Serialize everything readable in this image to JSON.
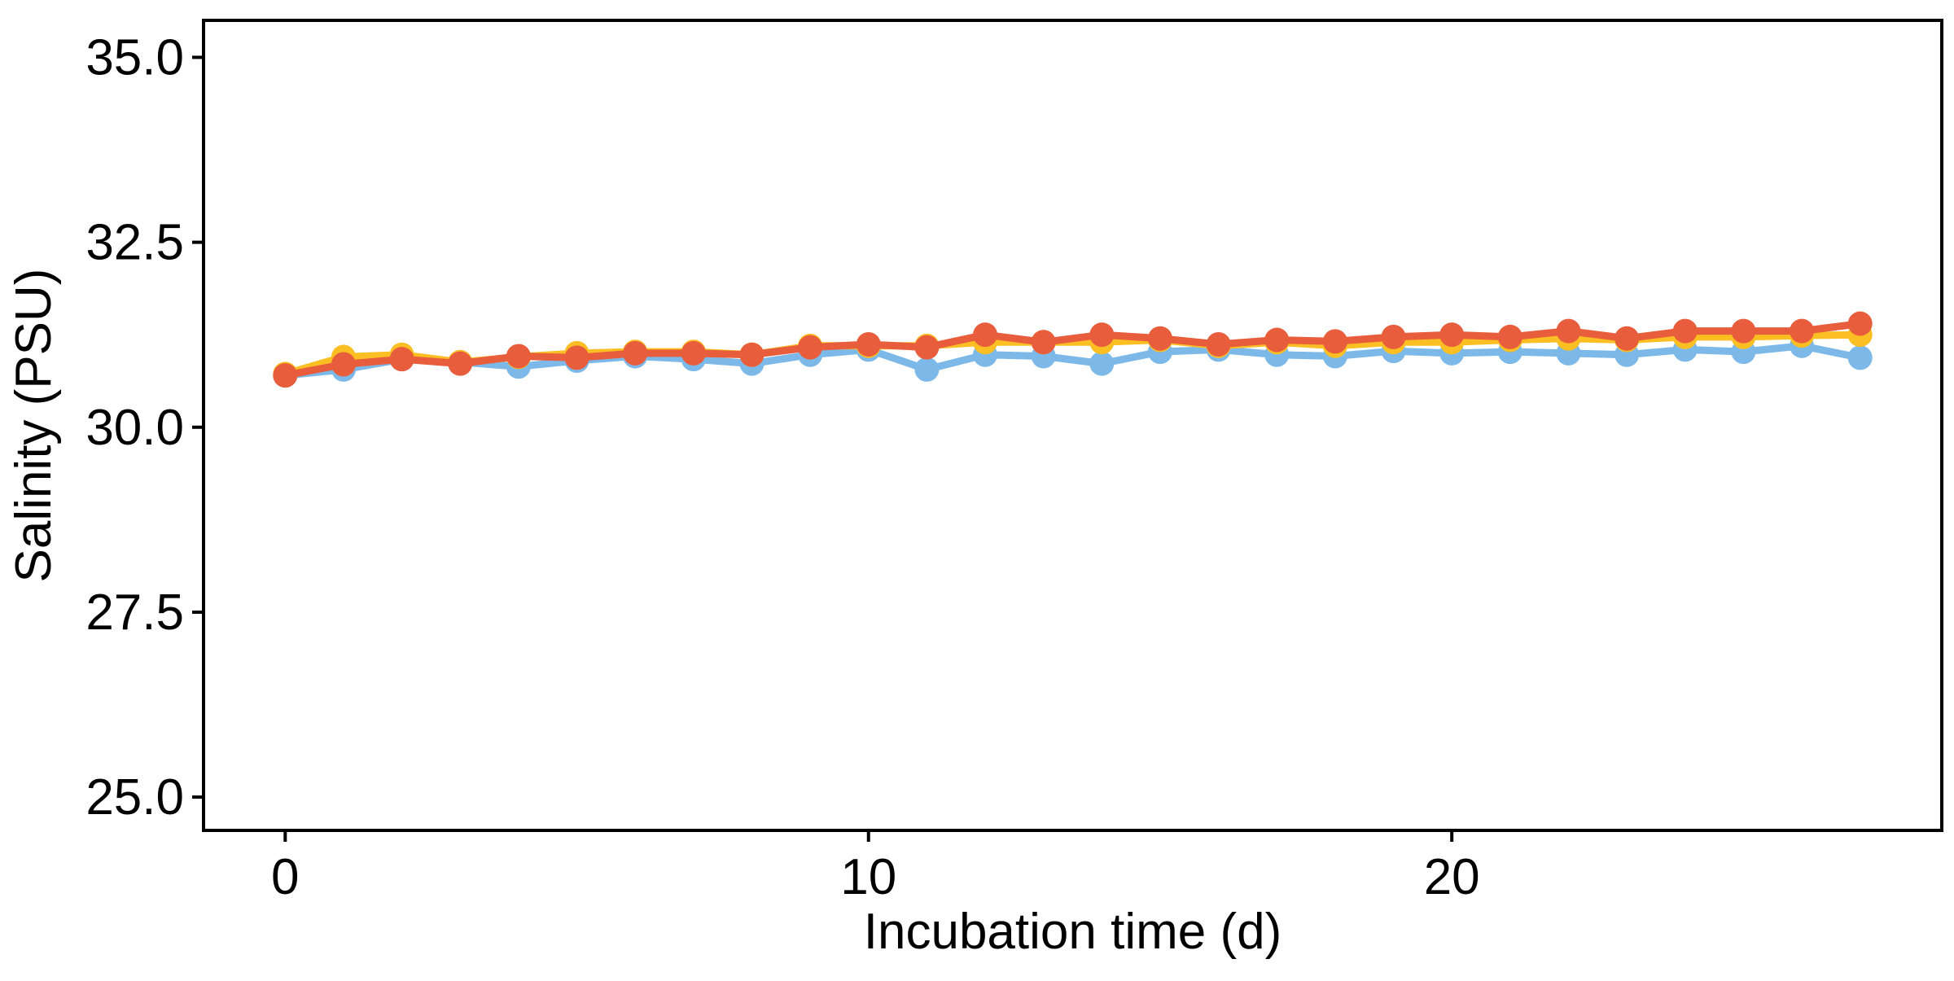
{
  "chart_data": {
    "type": "line",
    "xlabel": "Incubation time (d)",
    "ylabel": "Salinity (PSU)",
    "xlim": [
      -1.4,
      28.4
    ],
    "ylim": [
      24.55,
      35.5
    ],
    "xticks": [
      0,
      10,
      20
    ],
    "xtick_labels": [
      "0",
      "10",
      "20"
    ],
    "yticks": [
      25.0,
      27.5,
      30.0,
      32.5,
      35.0
    ],
    "ytick_labels": [
      "25.0",
      "27.5",
      "30.0",
      "32.5",
      "35.0"
    ],
    "grid": false,
    "legend": "none",
    "x": [
      0,
      1,
      2,
      3,
      4,
      5,
      6,
      7,
      8,
      9,
      10,
      11,
      12,
      13,
      14,
      15,
      16,
      17,
      18,
      19,
      20,
      21,
      22,
      23,
      24,
      25,
      26,
      27
    ],
    "series": [
      {
        "color": "#7cb9e8",
        "values": [
          30.7,
          30.78,
          30.92,
          30.88,
          30.82,
          30.9,
          30.96,
          30.92,
          30.86,
          30.98,
          31.05,
          30.78,
          30.98,
          30.96,
          30.86,
          31.02,
          31.05,
          30.98,
          30.96,
          31.03,
          31.0,
          31.02,
          31.0,
          30.98,
          31.05,
          31.02,
          31.1,
          30.94
        ]
      },
      {
        "color": "#fbbf24",
        "values": [
          30.72,
          30.95,
          30.98,
          30.88,
          30.95,
          31.0,
          31.02,
          31.02,
          30.98,
          31.1,
          31.1,
          31.1,
          31.15,
          31.15,
          31.15,
          31.18,
          31.1,
          31.15,
          31.1,
          31.15,
          31.15,
          31.18,
          31.2,
          31.18,
          31.22,
          31.22,
          31.24,
          31.25
        ]
      },
      {
        "color": "#e85d3c",
        "values": [
          30.7,
          30.85,
          30.92,
          30.86,
          30.96,
          30.94,
          31.0,
          31.0,
          30.98,
          31.08,
          31.12,
          31.08,
          31.25,
          31.15,
          31.25,
          31.2,
          31.12,
          31.18,
          31.16,
          31.22,
          31.25,
          31.22,
          31.3,
          31.2,
          31.3,
          31.3,
          31.3,
          31.4
        ]
      }
    ]
  }
}
